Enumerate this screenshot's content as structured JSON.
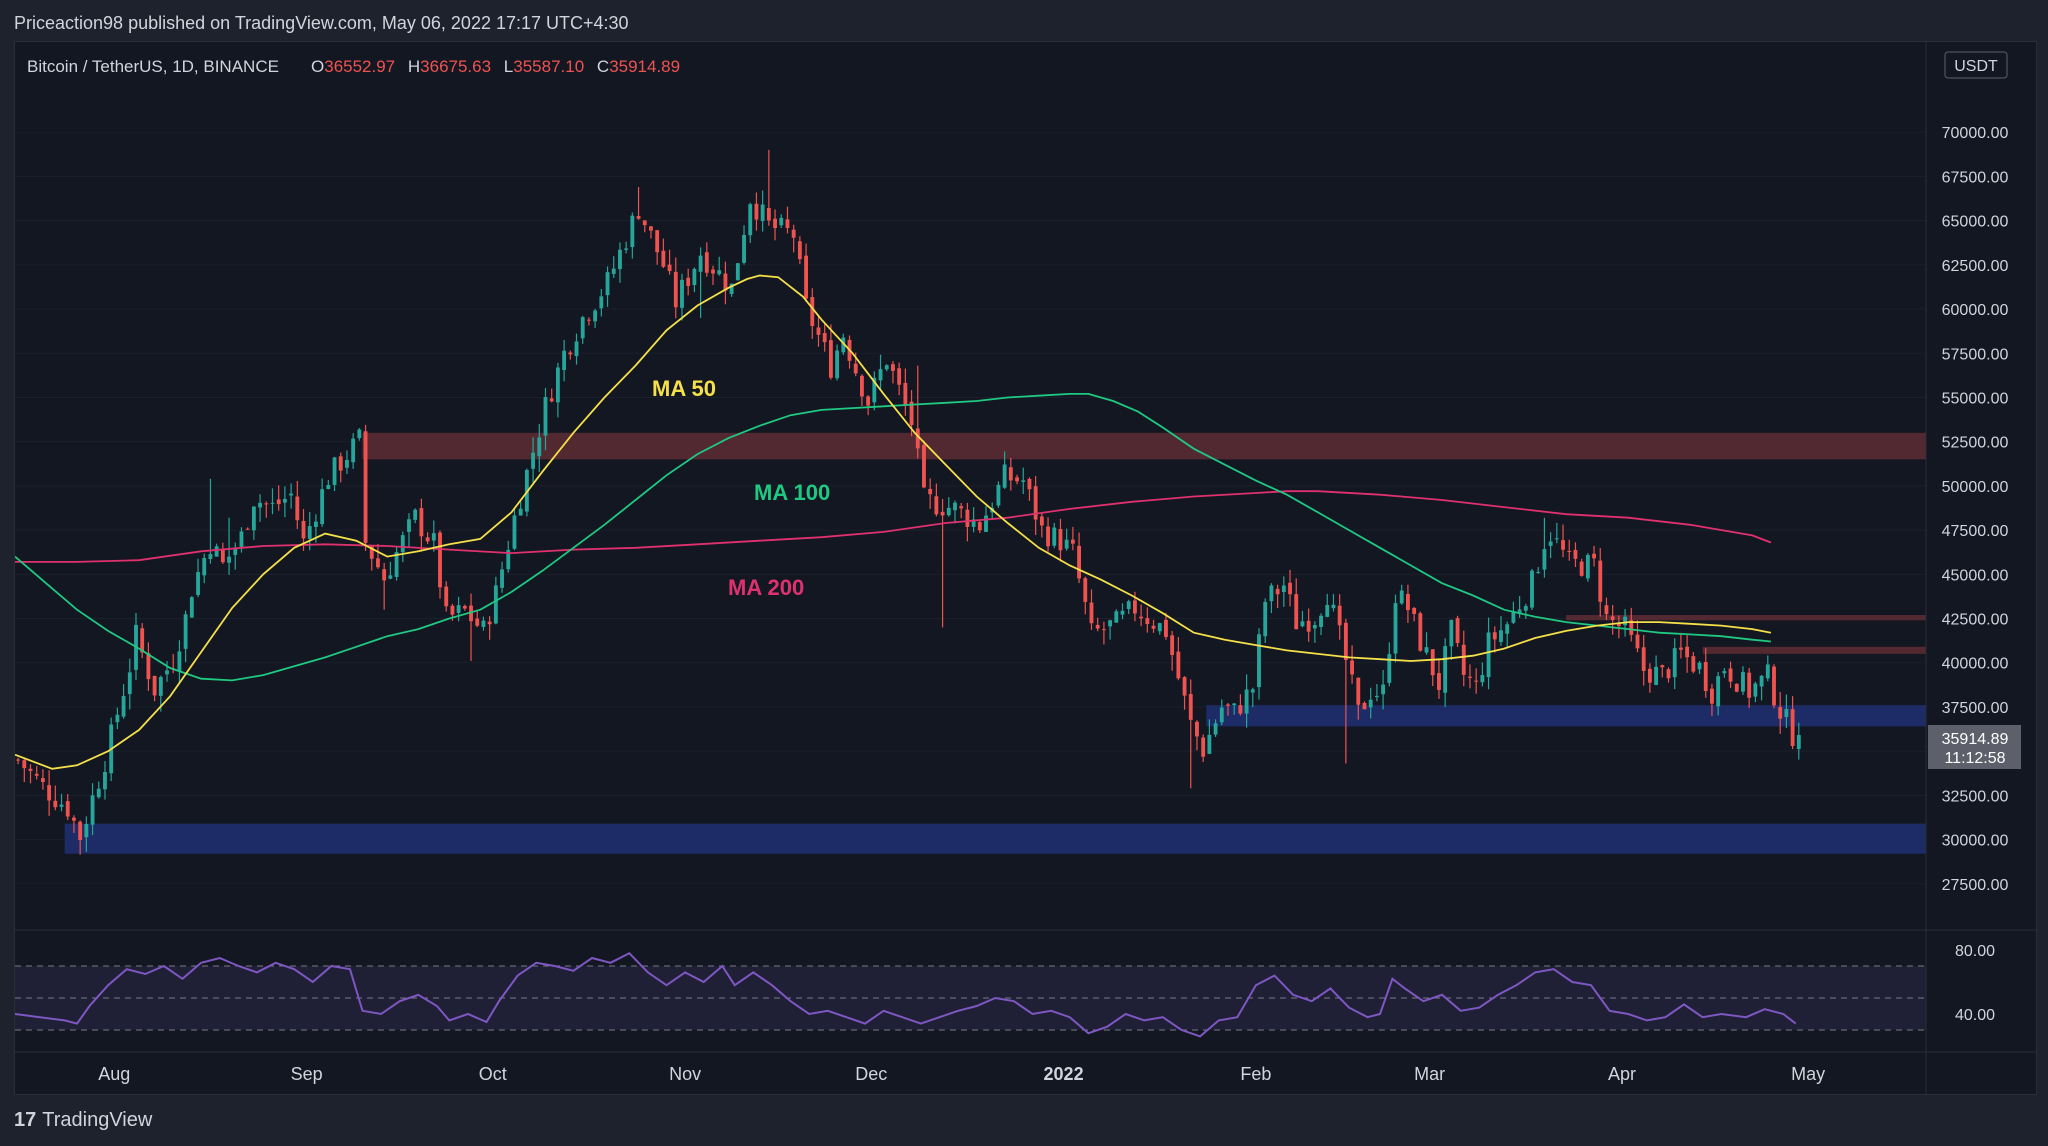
{
  "header": {
    "publish_line": "Priceaction98 published on TradingView.com, May 06, 2022 17:17 UTC+4:30"
  },
  "legend": {
    "symbol": "Bitcoin / TetherUS, 1D, BINANCE",
    "open_label": "O",
    "open": "36552.97",
    "high_label": "H",
    "high": "36675.63",
    "low_label": "L",
    "low": "35587.10",
    "close_label": "C",
    "close": "35914.89"
  },
  "currency_badge": "USDT",
  "price_label": {
    "price": "35914.89",
    "countdown": "11:12:58"
  },
  "ma_labels": {
    "ma50": "MA 50",
    "ma100": "MA 100",
    "ma200": "MA 200"
  },
  "footer": {
    "brand": "TradingView",
    "logo_glyph": "17"
  },
  "colors": {
    "up": "#26a69a",
    "down": "#ef5350",
    "ma50": "#f5e04a",
    "ma100": "#1fc981",
    "ma200": "#e0316f",
    "resistance_zone": "#5a2a33",
    "support_zone": "#1f2f6e",
    "rsi": "#7e57c2"
  },
  "chart_data": {
    "type": "candlestick",
    "title": "Bitcoin / TetherUS, 1D, BINANCE",
    "y_axis": {
      "ylim": [
        25000,
        72500
      ],
      "ticks": [
        27500,
        30000,
        32500,
        35000,
        37500,
        40000,
        42500,
        45000,
        47500,
        50000,
        52500,
        55000,
        57500,
        60000,
        62500,
        65000,
        67500,
        70000
      ],
      "tick_labels": [
        "27500.00",
        "30000.00",
        "32500.00",
        "35000.00",
        "37500.00",
        "40000.00",
        "42500.00",
        "45000.00",
        "47500.00",
        "50000.00",
        "52500.00",
        "55000.00",
        "57500.00",
        "60000.00",
        "62500.00",
        "65000.00",
        "67500.00",
        "70000.00"
      ]
    },
    "x_axis": {
      "labels": [
        "Aug",
        "Sep",
        "Oct",
        "Nov",
        "Dec",
        "2022",
        "Feb",
        "Mar",
        "Apr",
        "May"
      ],
      "label_days": [
        16,
        47,
        77,
        108,
        138,
        169,
        200,
        228,
        259,
        289
      ],
      "range_days": [
        0,
        308
      ]
    },
    "close_path": [
      [
        0,
        34500
      ],
      [
        4,
        33000
      ],
      [
        8,
        31800
      ],
      [
        10,
        30200
      ],
      [
        14,
        34500
      ],
      [
        18,
        39800
      ],
      [
        19,
        41500
      ],
      [
        22,
        38500
      ],
      [
        25,
        40200
      ],
      [
        27,
        42500
      ],
      [
        28,
        44200
      ],
      [
        31,
        46800
      ],
      [
        33,
        45500
      ],
      [
        36,
        47100
      ],
      [
        38,
        49300
      ],
      [
        41,
        48800
      ],
      [
        44,
        49500
      ],
      [
        46,
        46800
      ],
      [
        50,
        50500
      ],
      [
        55,
        52600
      ],
      [
        56,
        46800
      ],
      [
        59,
        44800
      ],
      [
        61,
        46200
      ],
      [
        64,
        48200
      ],
      [
        67,
        46700
      ],
      [
        69,
        42500
      ],
      [
        72,
        42900
      ],
      [
        75,
        41800
      ],
      [
        77,
        43900
      ],
      [
        80,
        48200
      ],
      [
        85,
        54500
      ],
      [
        88,
        57500
      ],
      [
        91,
        59500
      ],
      [
        95,
        61500
      ],
      [
        100,
        65700
      ],
      [
        104,
        62500
      ],
      [
        106,
        60400
      ],
      [
        110,
        63200
      ],
      [
        115,
        61200
      ],
      [
        118,
        66300
      ],
      [
        121,
        64700
      ],
      [
        125,
        64200
      ],
      [
        127,
        60100
      ],
      [
        131,
        56800
      ],
      [
        133,
        58600
      ],
      [
        135,
        56600
      ],
      [
        137,
        54800
      ],
      [
        140,
        57200
      ],
      [
        144,
        53600
      ],
      [
        146,
        49200
      ],
      [
        151,
        48700
      ],
      [
        155,
        47800
      ],
      [
        159,
        50500
      ],
      [
        162,
        50300
      ],
      [
        165,
        47500
      ],
      [
        168,
        46900
      ],
      [
        170,
        46200
      ],
      [
        173,
        41600
      ],
      [
        177,
        42200
      ],
      [
        180,
        43100
      ],
      [
        185,
        41800
      ],
      [
        189,
        36500
      ],
      [
        191,
        35100
      ],
      [
        194,
        37500
      ],
      [
        196,
        37200
      ],
      [
        199,
        38600
      ],
      [
        201,
        43500
      ],
      [
        204,
        44400
      ],
      [
        206,
        42300
      ],
      [
        209,
        42600
      ],
      [
        211,
        44000
      ],
      [
        214,
        40100
      ],
      [
        216,
        37100
      ],
      [
        218,
        38400
      ],
      [
        220,
        38300
      ],
      [
        222,
        43900
      ],
      [
        224,
        43100
      ],
      [
        226,
        41200
      ],
      [
        229,
        38800
      ],
      [
        231,
        41700
      ],
      [
        233,
        39300
      ],
      [
        235,
        38600
      ],
      [
        237,
        41100
      ],
      [
        240,
        42200
      ],
      [
        244,
        44500
      ],
      [
        246,
        46900
      ],
      [
        247,
        47300
      ],
      [
        250,
        45600
      ],
      [
        254,
        45500
      ],
      [
        256,
        42500
      ],
      [
        259,
        41900
      ],
      [
        262,
        39600
      ],
      [
        265,
        39300
      ],
      [
        268,
        40500
      ],
      [
        271,
        39700
      ],
      [
        273,
        38400
      ],
      [
        275,
        39800
      ],
      [
        279,
        38400
      ],
      [
        282,
        39200
      ],
      [
        284,
        37300
      ],
      [
        286,
        36000
      ],
      [
        287,
        35914.89
      ]
    ],
    "ranges": [
      [
        0,
        34600
      ],
      [
        11,
        29300
      ],
      [
        31,
        50400
      ],
      [
        34,
        48200
      ],
      [
        56,
        52900
      ],
      [
        59,
        43000
      ],
      [
        73,
        40100
      ],
      [
        85,
        55000
      ],
      [
        100,
        66900
      ],
      [
        110,
        59500
      ],
      [
        121,
        69000
      ],
      [
        145,
        56800
      ],
      [
        149,
        42000
      ],
      [
        159,
        51900
      ],
      [
        189,
        32900
      ],
      [
        214,
        34300
      ],
      [
        246,
        48200
      ],
      [
        287,
        35587.1
      ]
    ],
    "ma50": [
      [
        0,
        34800
      ],
      [
        6,
        34000
      ],
      [
        10,
        34200
      ],
      [
        15,
        35000
      ],
      [
        20,
        36200
      ],
      [
        25,
        38100
      ],
      [
        30,
        40600
      ],
      [
        35,
        43100
      ],
      [
        40,
        45000
      ],
      [
        45,
        46500
      ],
      [
        50,
        47300
      ],
      [
        55,
        46900
      ],
      [
        60,
        46000
      ],
      [
        65,
        46300
      ],
      [
        70,
        46700
      ],
      [
        75,
        47000
      ],
      [
        80,
        48500
      ],
      [
        85,
        50800
      ],
      [
        90,
        53000
      ],
      [
        95,
        55000
      ],
      [
        100,
        56800
      ],
      [
        105,
        58800
      ],
      [
        110,
        60200
      ],
      [
        115,
        61200
      ],
      [
        118,
        61700
      ],
      [
        120,
        61900
      ],
      [
        123,
        61800
      ],
      [
        127,
        60700
      ],
      [
        130,
        59400
      ],
      [
        135,
        57500
      ],
      [
        140,
        55200
      ],
      [
        145,
        53000
      ],
      [
        150,
        51200
      ],
      [
        155,
        49400
      ],
      [
        160,
        47900
      ],
      [
        165,
        46500
      ],
      [
        170,
        45500
      ],
      [
        175,
        44700
      ],
      [
        180,
        43800
      ],
      [
        185,
        42800
      ],
      [
        190,
        41700
      ],
      [
        195,
        41300
      ],
      [
        200,
        41000
      ],
      [
        205,
        40700
      ],
      [
        210,
        40500
      ],
      [
        215,
        40300
      ],
      [
        220,
        40200
      ],
      [
        225,
        40100
      ],
      [
        230,
        40200
      ],
      [
        235,
        40400
      ],
      [
        240,
        40800
      ],
      [
        245,
        41400
      ],
      [
        250,
        41800
      ],
      [
        255,
        42100
      ],
      [
        260,
        42300
      ],
      [
        265,
        42300
      ],
      [
        270,
        42200
      ],
      [
        275,
        42100
      ],
      [
        280,
        41900
      ],
      [
        283,
        41700
      ]
    ],
    "ma100": [
      [
        0,
        46000
      ],
      [
        5,
        44500
      ],
      [
        10,
        43000
      ],
      [
        15,
        41800
      ],
      [
        20,
        40800
      ],
      [
        25,
        39700
      ],
      [
        30,
        39100
      ],
      [
        35,
        39000
      ],
      [
        40,
        39300
      ],
      [
        45,
        39800
      ],
      [
        50,
        40300
      ],
      [
        55,
        40900
      ],
      [
        60,
        41500
      ],
      [
        65,
        41900
      ],
      [
        70,
        42500
      ],
      [
        75,
        43000
      ],
      [
        80,
        44000
      ],
      [
        85,
        45200
      ],
      [
        90,
        46500
      ],
      [
        95,
        47800
      ],
      [
        100,
        49200
      ],
      [
        105,
        50600
      ],
      [
        110,
        51800
      ],
      [
        115,
        52700
      ],
      [
        120,
        53400
      ],
      [
        125,
        54000
      ],
      [
        130,
        54300
      ],
      [
        135,
        54400
      ],
      [
        140,
        54500
      ],
      [
        145,
        54600
      ],
      [
        150,
        54700
      ],
      [
        155,
        54800
      ],
      [
        160,
        55000
      ],
      [
        165,
        55100
      ],
      [
        170,
        55200
      ],
      [
        173,
        55200
      ],
      [
        177,
        54800
      ],
      [
        181,
        54200
      ],
      [
        185,
        53300
      ],
      [
        190,
        52100
      ],
      [
        195,
        51200
      ],
      [
        200,
        50300
      ],
      [
        205,
        49500
      ],
      [
        210,
        48500
      ],
      [
        215,
        47500
      ],
      [
        220,
        46500
      ],
      [
        225,
        45500
      ],
      [
        230,
        44500
      ],
      [
        235,
        43800
      ],
      [
        240,
        43000
      ],
      [
        245,
        42600
      ],
      [
        250,
        42300
      ],
      [
        255,
        42100
      ],
      [
        260,
        41900
      ],
      [
        265,
        41700
      ],
      [
        270,
        41600
      ],
      [
        275,
        41500
      ],
      [
        280,
        41300
      ],
      [
        283,
        41200
      ]
    ],
    "ma200": [
      [
        0,
        45700
      ],
      [
        10,
        45700
      ],
      [
        20,
        45800
      ],
      [
        30,
        46300
      ],
      [
        40,
        46600
      ],
      [
        50,
        46700
      ],
      [
        60,
        46600
      ],
      [
        70,
        46400
      ],
      [
        80,
        46200
      ],
      [
        90,
        46400
      ],
      [
        100,
        46500
      ],
      [
        110,
        46700
      ],
      [
        120,
        46900
      ],
      [
        130,
        47100
      ],
      [
        140,
        47400
      ],
      [
        150,
        47900
      ],
      [
        160,
        48200
      ],
      [
        170,
        48700
      ],
      [
        180,
        49100
      ],
      [
        190,
        49400
      ],
      [
        200,
        49600
      ],
      [
        205,
        49700
      ],
      [
        210,
        49700
      ],
      [
        220,
        49500
      ],
      [
        230,
        49200
      ],
      [
        240,
        48800
      ],
      [
        250,
        48400
      ],
      [
        260,
        48200
      ],
      [
        270,
        47800
      ],
      [
        280,
        47200
      ],
      [
        283,
        46800
      ]
    ],
    "zones": [
      {
        "name": "resistance",
        "from_day": 56,
        "to_day": 308,
        "low": 51500,
        "high": 53000
      },
      {
        "name": "resistance-thin-1",
        "from_day": 250,
        "to_day": 308,
        "low": 42400,
        "high": 42700
      },
      {
        "name": "resistance-thin-2",
        "from_day": 272,
        "to_day": 308,
        "low": 40500,
        "high": 40900
      },
      {
        "name": "support",
        "from_day": 192,
        "to_day": 308,
        "low": 36400,
        "high": 37600
      },
      {
        "name": "support-low",
        "from_day": 8,
        "to_day": 308,
        "low": 29200,
        "high": 30900
      }
    ],
    "rsi": {
      "ticks": [
        80,
        40
      ],
      "tick_labels": [
        "80.00",
        "40.00"
      ],
      "upper": 70,
      "lower": 30,
      "ylim": [
        20,
        90
      ],
      "values": [
        [
          0,
          40
        ],
        [
          4,
          38
        ],
        [
          8,
          36
        ],
        [
          10,
          34
        ],
        [
          12,
          45
        ],
        [
          15,
          58
        ],
        [
          18,
          68
        ],
        [
          21,
          65
        ],
        [
          24,
          70
        ],
        [
          27,
          62
        ],
        [
          30,
          72
        ],
        [
          33,
          75
        ],
        [
          36,
          70
        ],
        [
          39,
          66
        ],
        [
          42,
          72
        ],
        [
          45,
          68
        ],
        [
          48,
          60
        ],
        [
          51,
          70
        ],
        [
          54,
          68
        ],
        [
          56,
          42
        ],
        [
          59,
          40
        ],
        [
          62,
          48
        ],
        [
          65,
          52
        ],
        [
          68,
          45
        ],
        [
          70,
          36
        ],
        [
          73,
          40
        ],
        [
          76,
          35
        ],
        [
          78,
          48
        ],
        [
          81,
          64
        ],
        [
          84,
          72
        ],
        [
          87,
          70
        ],
        [
          90,
          67
        ],
        [
          93,
          75
        ],
        [
          96,
          72
        ],
        [
          99,
          78
        ],
        [
          102,
          66
        ],
        [
          105,
          58
        ],
        [
          108,
          66
        ],
        [
          111,
          60
        ],
        [
          114,
          70
        ],
        [
          116,
          58
        ],
        [
          119,
          66
        ],
        [
          122,
          58
        ],
        [
          125,
          48
        ],
        [
          128,
          40
        ],
        [
          131,
          42
        ],
        [
          134,
          38
        ],
        [
          137,
          34
        ],
        [
          140,
          42
        ],
        [
          143,
          38
        ],
        [
          146,
          34
        ],
        [
          149,
          38
        ],
        [
          152,
          42
        ],
        [
          155,
          45
        ],
        [
          158,
          50
        ],
        [
          161,
          48
        ],
        [
          164,
          40
        ],
        [
          167,
          42
        ],
        [
          170,
          38
        ],
        [
          173,
          28
        ],
        [
          176,
          32
        ],
        [
          179,
          40
        ],
        [
          182,
          36
        ],
        [
          185,
          38
        ],
        [
          188,
          30
        ],
        [
          191,
          26
        ],
        [
          194,
          36
        ],
        [
          197,
          38
        ],
        [
          200,
          58
        ],
        [
          203,
          64
        ],
        [
          206,
          52
        ],
        [
          209,
          48
        ],
        [
          212,
          56
        ],
        [
          215,
          44
        ],
        [
          218,
          38
        ],
        [
          220,
          40
        ],
        [
          222,
          62
        ],
        [
          224,
          56
        ],
        [
          227,
          48
        ],
        [
          230,
          52
        ],
        [
          233,
          42
        ],
        [
          236,
          44
        ],
        [
          239,
          52
        ],
        [
          242,
          58
        ],
        [
          245,
          66
        ],
        [
          248,
          68
        ],
        [
          251,
          60
        ],
        [
          254,
          58
        ],
        [
          257,
          42
        ],
        [
          260,
          40
        ],
        [
          263,
          36
        ],
        [
          266,
          38
        ],
        [
          269,
          46
        ],
        [
          272,
          38
        ],
        [
          275,
          40
        ],
        [
          279,
          38
        ],
        [
          282,
          43
        ],
        [
          285,
          40
        ],
        [
          287,
          34
        ]
      ]
    }
  }
}
